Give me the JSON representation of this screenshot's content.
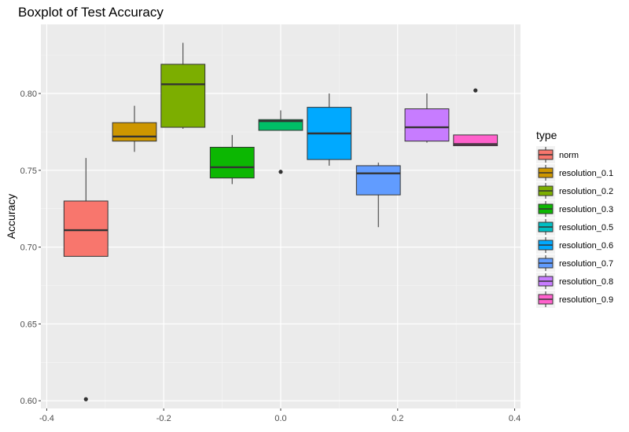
{
  "chart_data": {
    "type": "boxplot",
    "title": "Boxplot of Test Accuracy",
    "xlabel": "",
    "ylabel": "Accuracy",
    "xlim": [
      -0.41,
      0.41
    ],
    "ylim": [
      0.595,
      0.845
    ],
    "x_ticks": [
      -0.4,
      -0.2,
      0.0,
      0.2,
      0.4
    ],
    "x_tick_labels": [
      "-0.4",
      "-0.2",
      "0.0",
      "0.2",
      "0.4"
    ],
    "y_ticks": [
      0.6,
      0.65,
      0.7,
      0.75,
      0.8
    ],
    "y_tick_labels": [
      "0.60",
      "0.65",
      "0.70",
      "0.75",
      "0.80"
    ],
    "grid": true,
    "legend": {
      "title": "type",
      "position": "right"
    },
    "box_width": 0.075,
    "series": [
      {
        "name": "norm",
        "x": -0.333,
        "color": "#F8766D",
        "whisker_low": 0.694,
        "q1": 0.694,
        "median": 0.711,
        "q3": 0.73,
        "whisker_high": 0.758,
        "outliers": [
          0.601
        ]
      },
      {
        "name": "resolution_0.1",
        "x": -0.25,
        "color": "#CD9600",
        "whisker_low": 0.762,
        "q1": 0.769,
        "median": 0.772,
        "q3": 0.781,
        "whisker_high": 0.792,
        "outliers": []
      },
      {
        "name": "resolution_0.2",
        "x": -0.167,
        "color": "#7CAE00",
        "whisker_low": 0.777,
        "q1": 0.778,
        "median": 0.806,
        "q3": 0.819,
        "whisker_high": 0.833,
        "outliers": []
      },
      {
        "name": "resolution_0.3",
        "x": -0.083,
        "color": "#0CB702",
        "whisker_low": 0.741,
        "q1": 0.745,
        "median": 0.752,
        "q3": 0.765,
        "whisker_high": 0.773,
        "outliers": []
      },
      {
        "name": "resolution_0.5",
        "x": 0.0,
        "color": "#00BE67",
        "whisker_low": 0.776,
        "q1": 0.776,
        "median": 0.782,
        "q3": 0.783,
        "whisker_high": 0.789,
        "outliers": [
          0.749
        ]
      },
      {
        "name": "resolution_0.6",
        "x": 0.083,
        "color": "#00A9FF",
        "whisker_low": 0.753,
        "q1": 0.757,
        "median": 0.774,
        "q3": 0.791,
        "whisker_high": 0.8,
        "outliers": []
      },
      {
        "name": "resolution_0.7",
        "x": 0.167,
        "color": "#619CFF",
        "whisker_low": 0.713,
        "q1": 0.734,
        "median": 0.748,
        "q3": 0.753,
        "whisker_high": 0.755,
        "outliers": []
      },
      {
        "name": "resolution_0.8",
        "x": 0.25,
        "color": "#C77CFF",
        "whisker_low": 0.768,
        "q1": 0.769,
        "median": 0.778,
        "q3": 0.79,
        "whisker_high": 0.8,
        "outliers": []
      },
      {
        "name": "resolution_0.9",
        "x": 0.333,
        "color": "#FF61CC",
        "whisker_low": 0.766,
        "q1": 0.766,
        "median": 0.767,
        "q3": 0.773,
        "whisker_high": 0.773,
        "outliers": [
          0.802
        ]
      }
    ],
    "legend_entry_colors": [
      "#F8766D",
      "#CD9600",
      "#7CAE00",
      "#0CB702",
      "#00BFC4",
      "#00A9FF",
      "#619CFF",
      "#C77CFF",
      "#FF61CC"
    ]
  }
}
